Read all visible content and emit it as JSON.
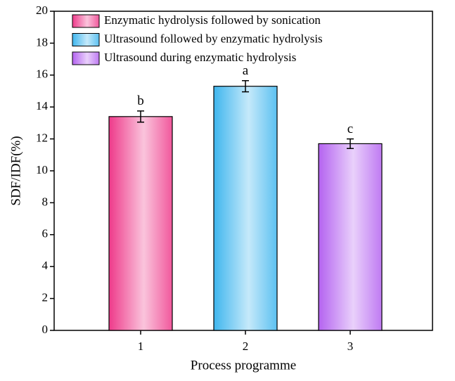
{
  "chart_data": {
    "type": "bar",
    "categories": [
      "1",
      "2",
      "3"
    ],
    "values": [
      13.4,
      15.3,
      11.7
    ],
    "errors": [
      0.35,
      0.35,
      0.3
    ],
    "annotations": [
      "b",
      "a",
      "c"
    ],
    "legend": [
      "Enzymatic hydrolysis followed by sonication",
      "Ultrasound followed by enzymatic hydrolysis",
      "Ultrasound during enzymatic hydrolysis"
    ],
    "colors": [
      "#ee3a8a",
      "#3fb6ee",
      "#b463f0"
    ],
    "xlabel": "Process programme",
    "ylabel": "SDF/IDF(%)",
    "ylim": [
      0,
      20
    ],
    "yticks": [
      0,
      2,
      4,
      6,
      8,
      10,
      12,
      14,
      16,
      18,
      20
    ]
  }
}
